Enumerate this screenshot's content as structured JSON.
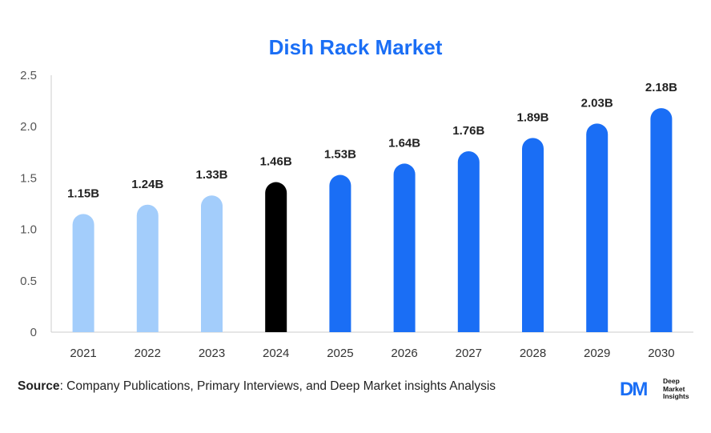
{
  "title": "Dish Rack Market",
  "source_label": "Source",
  "source_text": ": Company Publications, Primary Interviews, and Deep Market insights Analysis",
  "logo": {
    "mark": "DM",
    "line1": "Deep",
    "line2": "Market",
    "line3": "Insights"
  },
  "colors": {
    "title": "#1a6ef5",
    "past": "#a3cdfb",
    "current": "#000000",
    "forecast": "#1a6ef5",
    "axis": "#cccccc",
    "text": "#555555"
  },
  "chart_data": {
    "type": "bar",
    "title": "Dish Rack Market",
    "xlabel": "",
    "ylabel": "",
    "ylim": [
      0,
      2.5
    ],
    "yticks": [
      "0",
      "0.5",
      "1.0",
      "1.5",
      "2.0",
      "2.5"
    ],
    "ytick_values": [
      0,
      0.5,
      1.0,
      1.5,
      2.0,
      2.5
    ],
    "categories": [
      "2021",
      "2022",
      "2023",
      "2024",
      "2025",
      "2026",
      "2027",
      "2028",
      "2029",
      "2030"
    ],
    "values": [
      1.15,
      1.24,
      1.33,
      1.46,
      1.53,
      1.64,
      1.76,
      1.89,
      2.03,
      2.18
    ],
    "labels": [
      "1.15B",
      "1.24B",
      "1.33B",
      "1.46B",
      "1.53B",
      "1.64B",
      "1.76B",
      "1.89B",
      "2.03B",
      "2.18B"
    ],
    "bar_colors": [
      "#a3cdfb",
      "#a3cdfb",
      "#a3cdfb",
      "#000000",
      "#1a6ef5",
      "#1a6ef5",
      "#1a6ef5",
      "#1a6ef5",
      "#1a6ef5",
      "#1a6ef5"
    ],
    "grid": false
  }
}
